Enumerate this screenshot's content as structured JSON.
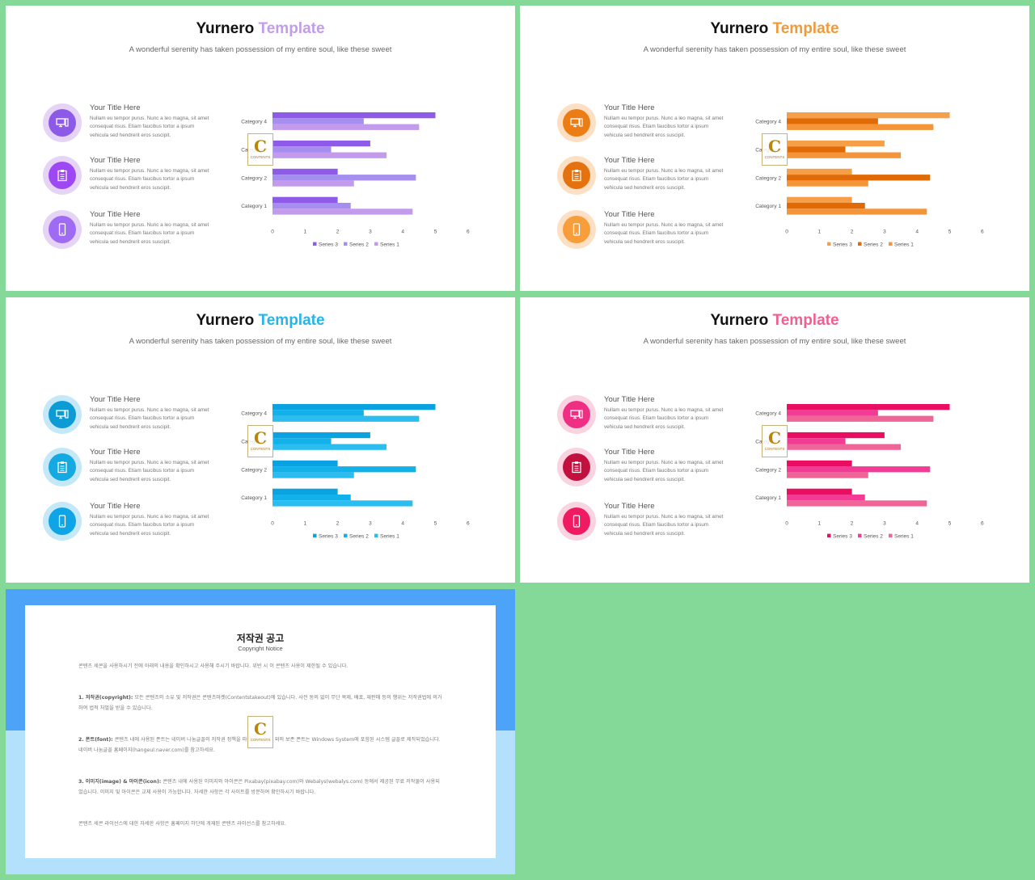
{
  "slides": [
    {
      "title_main": "Yurnero",
      "title_accent": "Template",
      "subtitle": "A wonderful serenity has taken possession of my entire soul, like these sweet",
      "accent_color": "#c39bec",
      "outer_color": "#e6d4f7",
      "inner_colors": [
        "#8d5ae8",
        "#9d48f2",
        "#a06bf3"
      ],
      "series_colors": [
        "#8e5be8",
        "#a58ef0",
        "#c39bec"
      ],
      "items": [
        {
          "icon": "monitor-icon",
          "title": "Your Title Here",
          "desc": "Nullam eu tempor purus. Nunc a leo magna, sit amet consequat risus. Etiam faucibus tortor a ipsum vehicula sed hendrerit eros suscipit."
        },
        {
          "icon": "clipboard-icon",
          "title": "Your Title Here",
          "desc": "Nullam eu tempor purus. Nunc a leo magna, sit amet consequat risus. Etiam faucibus tortor a ipsum vehicula sed hendrerit eros suscipit."
        },
        {
          "icon": "smartphone-icon",
          "title": "Your Title Here",
          "desc": "Nullam eu tempor purus. Nunc a leo magna, sit amet consequat risus. Etiam faucibus tortor a ipsum vehicula sed hendrerit eros suscipit."
        }
      ]
    },
    {
      "title_main": "Yurnero",
      "title_accent": "Template",
      "subtitle": "A wonderful serenity has taken possession of my entire soul, like these sweet",
      "accent_color": "#f19a38",
      "outer_color": "#fde0c4",
      "inner_colors": [
        "#ec7d14",
        "#e4730f",
        "#f79d3a"
      ],
      "series_colors": [
        "#f5a049",
        "#e06a06",
        "#f4953a"
      ],
      "items": [
        {
          "icon": "monitor-icon",
          "title": "Your Title Here",
          "desc": "Nullam eu tempor purus. Nunc a leo magna, sit amet consequat risus. Etiam faucibus tortor a ipsum vehicula sed hendrerit eros suscipit."
        },
        {
          "icon": "clipboard-icon",
          "title": "Your Title Here",
          "desc": "Nullam eu tempor purus. Nunc a leo magna, sit amet consequat risus. Etiam faucibus tortor a ipsum vehicula sed hendrerit eros suscipit."
        },
        {
          "icon": "smartphone-icon",
          "title": "Your Title Here",
          "desc": "Nullam eu tempor purus. Nunc a leo magna, sit amet consequat risus. Etiam faucibus tortor a ipsum vehicula sed hendrerit eros suscipit."
        }
      ]
    },
    {
      "title_main": "Yurnero",
      "title_accent": "Template",
      "subtitle": "A wonderful serenity has taken possession of my entire soul, like these sweet",
      "accent_color": "#27b4ea",
      "outer_color": "#c4e8f7",
      "inner_colors": [
        "#0d9bd6",
        "#15a9e2",
        "#0ea4e6"
      ],
      "series_colors": [
        "#0aa2e0",
        "#12b1ea",
        "#2bbdf0"
      ],
      "items": [
        {
          "icon": "monitor-icon",
          "title": "Your Title Here",
          "desc": "Nullam eu tempor purus. Nunc a leo magna, sit amet consequat risus. Etiam faucibus tortor a ipsum vehicula sed hendrerit eros suscipit."
        },
        {
          "icon": "clipboard-icon",
          "title": "Your Title Here",
          "desc": "Nullam eu tempor purus. Nunc a leo magna, sit amet consequat risus. Etiam faucibus tortor a ipsum vehicula sed hendrerit eros suscipit."
        },
        {
          "icon": "smartphone-icon",
          "title": "Your Title Here",
          "desc": "Nullam eu tempor purus. Nunc a leo magna, sit amet consequat risus. Etiam faucibus tortor a ipsum vehicula sed hendrerit eros suscipit."
        }
      ]
    },
    {
      "title_main": "Yurnero",
      "title_accent": "Template",
      "subtitle": "A wonderful serenity has taken possession of my entire soul, like these sweet",
      "accent_color": "#ef5f92",
      "outer_color": "#f9d3e0",
      "inner_colors": [
        "#ee2f84",
        "#c2113f",
        "#f01a63"
      ],
      "series_colors": [
        "#ea0e62",
        "#f23b95",
        "#f06597"
      ],
      "items": [
        {
          "icon": "monitor-icon",
          "title": "Your Title Here",
          "desc": "Nullam eu tempor purus. Nunc a leo magna, sit amet consequat risus. Etiam faucibus tortor a ipsum vehicula sed hendrerit eros suscipit."
        },
        {
          "icon": "clipboard-icon",
          "title": "Your Title Here",
          "desc": "Nullam eu tempor purus. Nunc a leo magna, sit amet consequat risus. Etiam faucibus tortor a ipsum vehicula sed hendrerit eros suscipit."
        },
        {
          "icon": "smartphone-icon",
          "title": "Your Title Here",
          "desc": "Nullam eu tempor purus. Nunc a leo magna, sit amet consequat risus. Etiam faucibus tortor a ipsum vehicula sed hendrerit eros suscipit."
        }
      ]
    }
  ],
  "chart_data": {
    "type": "bar",
    "orientation": "horizontal",
    "categories": [
      "Category 1",
      "Category 2",
      "Category 3",
      "Category 4"
    ],
    "series": [
      {
        "name": "Series 3",
        "values": [
          2,
          2,
          3,
          5
        ]
      },
      {
        "name": "Series 2",
        "values": [
          2.4,
          4.4,
          1.8,
          2.8
        ]
      },
      {
        "name": "Series 1",
        "values": [
          4.3,
          2.5,
          3.5,
          4.5
        ]
      }
    ],
    "xlim": [
      0,
      6
    ],
    "xticks": [
      "0",
      "1",
      "2",
      "3",
      "4",
      "5",
      "6"
    ],
    "legend_position": "bottom",
    "grid": false
  },
  "watermark": {
    "letter": "C",
    "text": "CONTENTS"
  },
  "notice": {
    "title": "저작권 공고",
    "subtitle": "Copyright Notice",
    "paragraphs": [
      {
        "head": "",
        "body": "콘텐츠 세콘을 사용하시기 전에 아래의 내용을 확인하시고 사용해 주시기 바랍니다. 위반 시 이 콘텐츠 사용이 제한될 수 있습니다."
      },
      {
        "head": "1. 저작권(copyright):",
        "body": " 모든 콘텐츠의 소유 및 저작권은 콘텐츠마켓(Contentstakeout)에 있습니다. 사전 동의 없이 무단 복제, 배포, 재판매 등의 행위는 저작권법에 의거하여 법적 처벌을 받을 수 있습니다."
      },
      {
        "head": "2. 폰트(font):",
        "body": " 콘텐츠 내에 사용된 폰트는 네이버 나눔글꼴의 저작권 정책을 따릅니다. 일부 외의 보존 폰트는 Windows System에 포함된 시스템 글꼴로 제작되었습니다. 네이버 나눔글꼴 홈페이지(hangeul.naver.com)를 참고하세요."
      },
      {
        "head": "3. 이미지(image) & 아이콘(icon):",
        "body": " 콘텐츠 내에 사용된 이미지와 아이콘은 Pixabay(pixabay.com)와 Webalys(webalys.com) 등에서 제공된 무료 저작물이 사용되었습니다. 이미지 및 아이콘은 교체 사용이 가능합니다. 자세한 사항은 각 사이트를 방문하여 확인하시기 바랍니다."
      },
      {
        "head": "",
        "body": "콘텐츠 세콘 라이선스에 대한 자세한 사항은 홈페이지 하단에 게재된 콘텐츠 라이선스를 참고하세요."
      }
    ]
  }
}
